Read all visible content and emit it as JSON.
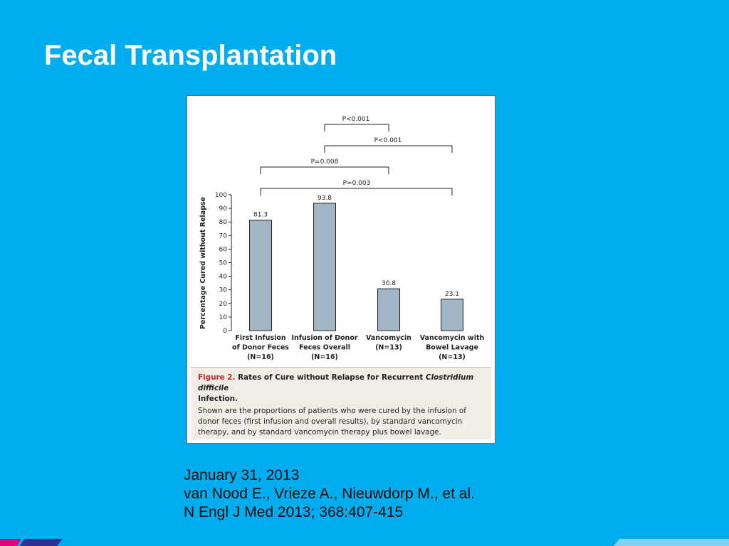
{
  "slide": {
    "title": "Fecal Transplantation",
    "citation": {
      "date": "January 31, 2013",
      "authors": "van Nood E., Vrieze A., Nieuwdorp M., et al.",
      "journal": "N Engl J Med 2013; 368:407-415"
    }
  },
  "colors": {
    "background": "#00AEEF",
    "bar_fill": "#9FB6C6",
    "caption_bg": "#F1ECE6",
    "figure_label": "#C1272D"
  },
  "chart_data": {
    "type": "bar",
    "ylabel": "Percentage Cured without Relapse",
    "ylim": [
      0,
      100
    ],
    "yticks": [
      0,
      10,
      20,
      30,
      40,
      50,
      60,
      70,
      80,
      90,
      100
    ],
    "categories": [
      [
        "First Infusion",
        "of Donor Feces",
        "(N=16)"
      ],
      [
        "Infusion of Donor",
        "Feces Overall",
        "(N=16)"
      ],
      [
        "Vancomycin",
        "(N=13)"
      ],
      [
        "Vancomycin with",
        "Bowel Lavage",
        "(N=13)"
      ]
    ],
    "values": [
      81.3,
      93.8,
      30.8,
      23.1
    ],
    "value_labels": [
      "81.3",
      "93.8",
      "30.8",
      "23.1"
    ],
    "comparisons": [
      {
        "from": 1,
        "to": 2,
        "label": "P<0.001"
      },
      {
        "from": 1,
        "to": 3,
        "label": "P<0.001"
      },
      {
        "from": 0,
        "to": 2,
        "label": "P=0.008"
      },
      {
        "from": 0,
        "to": 3,
        "label": "P=0.003"
      }
    ],
    "grid": false
  },
  "caption": {
    "figure_label": "Figure 2.",
    "title_part1": " Rates of Cure without Relapse for Recurrent ",
    "title_italic": "Clostridium difficile",
    "title_line2": "Infection.",
    "body": "Shown are the proportions of patients who were cured by the infusion of donor feces (first infusion and overall results), by standard vancomycin therapy, and by standard vancomycin therapy plus bowel lavage."
  }
}
